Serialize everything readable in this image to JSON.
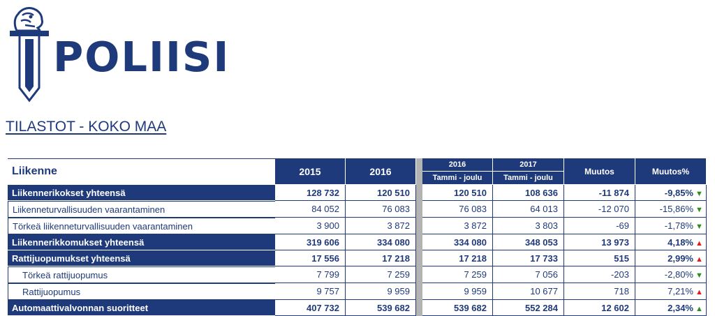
{
  "logo": {
    "text": "POLIISI",
    "icon": "police-lion-sword-emblem"
  },
  "page_title": "TILASTOT - KOKO MAA",
  "table": {
    "section_label": "Liikenne",
    "columns": {
      "y2015": "2015",
      "y2016": "2016",
      "p2016_year": "2016",
      "p2016_sub": "Tammi - joulu",
      "p2017_year": "2017",
      "p2017_sub": "Tammi - joulu",
      "muutos": "Muutos",
      "muutos_pct": "Muutos%"
    },
    "rows": [
      {
        "label": "Liikennerikokset yhteensä",
        "style": "bold",
        "v2015": "128 732",
        "v2016": "120 510",
        "p2016": "120 510",
        "p2017": "108 636",
        "muutos": "-11 874",
        "pct": "-9,85%",
        "trend": "down"
      },
      {
        "label": "Liikenneturvallisuuden vaarantaminen",
        "style": "plain",
        "v2015": "84 052",
        "v2016": "76 083",
        "p2016": "76 083",
        "p2017": "64 013",
        "muutos": "-12 070",
        "pct": "-15,86%",
        "trend": "down"
      },
      {
        "label": "Törkeä liikenneturvallisuuden vaarantaminen",
        "style": "plain",
        "v2015": "3 900",
        "v2016": "3 872",
        "p2016": "3 872",
        "p2017": "3 803",
        "muutos": "-69",
        "pct": "-1,78%",
        "trend": "down"
      },
      {
        "label": "Liikennerikkomukset yhteensä",
        "style": "bold",
        "v2015": "319 606",
        "v2016": "334 080",
        "p2016": "334 080",
        "p2017": "348 053",
        "muutos": "13 973",
        "pct": "4,18%",
        "trend": "up-red"
      },
      {
        "label": "Rattijuopumukset yhteensä",
        "style": "bold",
        "v2015": "17 556",
        "v2016": "17 218",
        "p2016": "17 218",
        "p2017": "17 733",
        "muutos": "515",
        "pct": "2,99%",
        "trend": "up-red"
      },
      {
        "label": "Törkeä rattijuopumus",
        "style": "indent",
        "v2015": "7 799",
        "v2016": "7 259",
        "p2016": "7 259",
        "p2017": "7 056",
        "muutos": "-203",
        "pct": "-2,80%",
        "trend": "down"
      },
      {
        "label": "Rattijuopumus",
        "style": "indent",
        "v2015": "9 757",
        "v2016": "9 959",
        "p2016": "9 959",
        "p2017": "10 677",
        "muutos": "718",
        "pct": "7,21%",
        "trend": "up-red"
      },
      {
        "label": "Automaattivalvonnan suoritteet",
        "style": "bold",
        "v2015": "407 732",
        "v2016": "539 682",
        "p2016": "539 682",
        "p2017": "552 284",
        "muutos": "12 602",
        "pct": "2,34%",
        "trend": "up-green"
      }
    ],
    "colors": {
      "header_bg": "#1f3a7a",
      "separator": "#b3b3b3",
      "down": "#2e8b1e",
      "up_bad": "#e21c1c",
      "up_good": "#2e8b1e"
    }
  }
}
